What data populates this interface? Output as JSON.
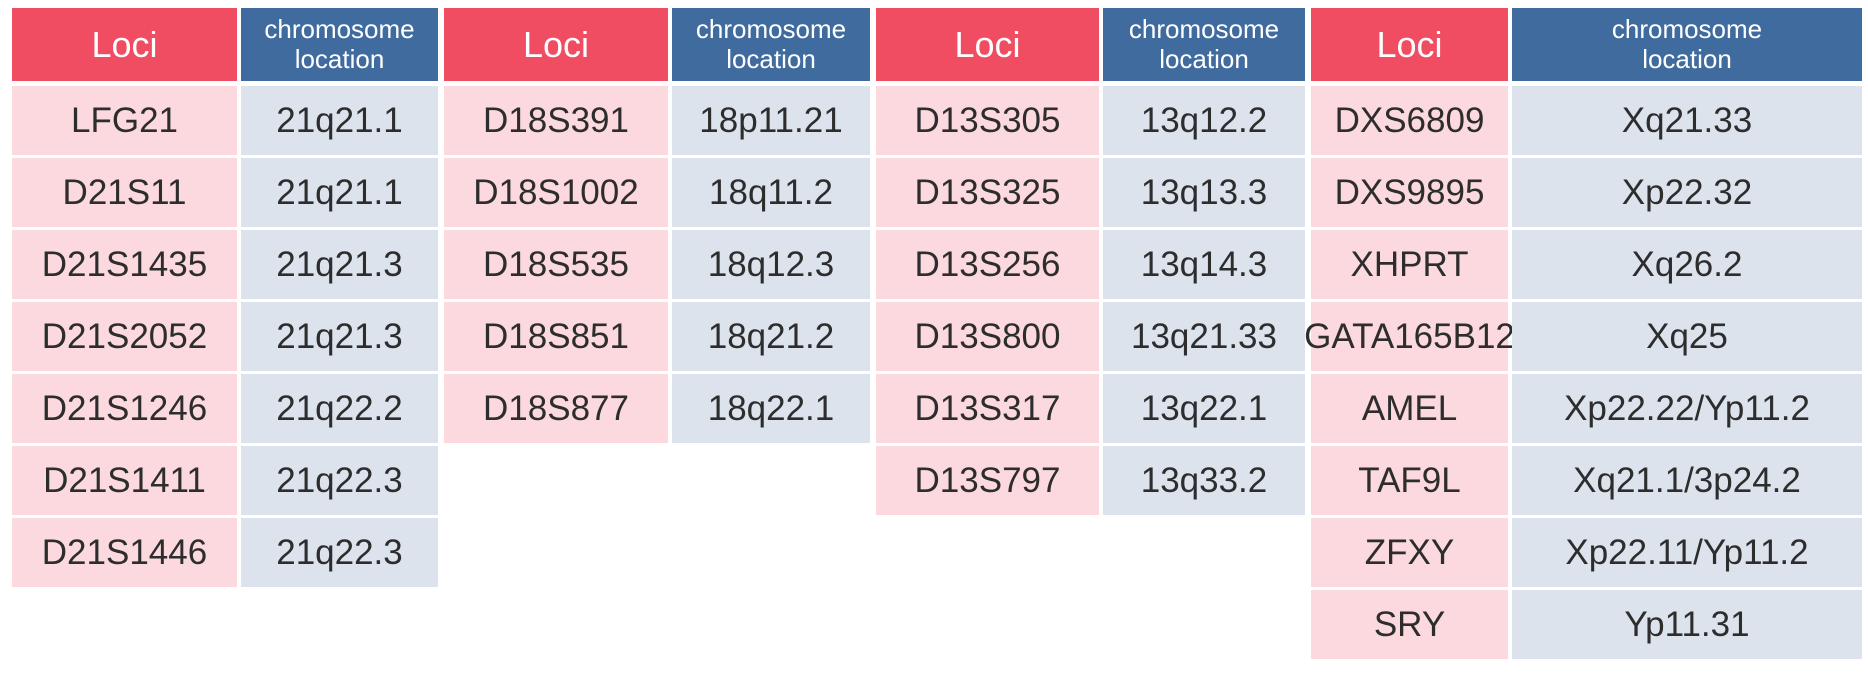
{
  "chart_data": {
    "type": "table",
    "title": "",
    "header": {
      "loci": "Loci",
      "location": "chromosome\nlocation"
    },
    "layout_hint": "four side-by-side Loci/chromosome-location column pairs sharing one row grid; no outer border, white gaps between cells",
    "groups": [
      {
        "rows": [
          {
            "loci": "LFG21",
            "location": "21q21.1"
          },
          {
            "loci": "D21S11",
            "location": "21q21.1"
          },
          {
            "loci": "D21S1435",
            "location": "21q21.3"
          },
          {
            "loci": "D21S2052",
            "location": "21q21.3"
          },
          {
            "loci": "D21S1246",
            "location": "21q22.2"
          },
          {
            "loci": "D21S1411",
            "location": "21q22.3"
          },
          {
            "loci": "D21S1446",
            "location": "21q22.3"
          }
        ]
      },
      {
        "rows": [
          {
            "loci": "D18S391",
            "location": "18p11.21"
          },
          {
            "loci": "D18S1002",
            "location": "18q11.2"
          },
          {
            "loci": "D18S535",
            "location": "18q12.3"
          },
          {
            "loci": "D18S851",
            "location": "18q21.2"
          },
          {
            "loci": "D18S877",
            "location": "18q22.1"
          }
        ]
      },
      {
        "rows": [
          {
            "loci": "D13S305",
            "location": "13q12.2"
          },
          {
            "loci": "D13S325",
            "location": "13q13.3"
          },
          {
            "loci": "D13S256",
            "location": "13q14.3"
          },
          {
            "loci": "D13S800",
            "location": "13q21.33"
          },
          {
            "loci": "D13S317",
            "location": "13q22.1"
          },
          {
            "loci": "D13S797",
            "location": "13q33.2"
          }
        ]
      },
      {
        "rows": [
          {
            "loci": "DXS6809",
            "location": "Xq21.33"
          },
          {
            "loci": "DXS9895",
            "location": "Xp22.32"
          },
          {
            "loci": "XHPRT",
            "location": "Xq26.2"
          },
          {
            "loci": "GATA165B12",
            "location": "Xq25"
          },
          {
            "loci": "AMEL",
            "location": "Xp22.22/Yp11.2"
          },
          {
            "loci": "TAF9L",
            "location": "Xq21.1/3p24.2"
          },
          {
            "loci": "ZFXY",
            "location": "Xp22.11/Yp11.2"
          },
          {
            "loci": "SRY",
            "location": "Yp11.31"
          }
        ]
      }
    ]
  },
  "colors": {
    "loci_header_bg": "#f04d62",
    "location_header_bg": "#406b9f",
    "loci_cell_bg": "#fbd9de",
    "location_cell_bg": "#dce3ed",
    "header_text": "#ffffff",
    "cell_text": "#2d2d2d"
  }
}
